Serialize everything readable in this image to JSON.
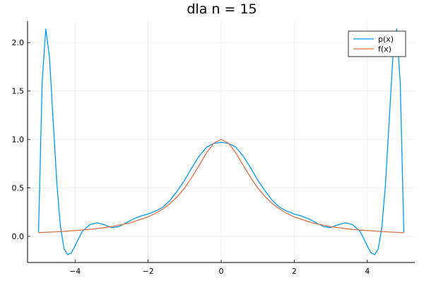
{
  "chart_data": {
    "type": "line",
    "title": "dla n = 15",
    "xlabel": "",
    "ylabel": "",
    "xlim": [
      -5.3,
      5.3
    ],
    "ylim": [
      -0.27,
      2.22
    ],
    "grid": true,
    "legend_position": "top-right",
    "x_ticks": [
      -4,
      -2,
      0,
      2,
      4
    ],
    "x_tick_labels": [
      "−4",
      "−2",
      "0",
      "2",
      "4"
    ],
    "y_ticks": [
      0.0,
      0.5,
      1.0,
      1.5,
      2.0
    ],
    "y_tick_labels": [
      "0.0",
      "0.5",
      "1.0",
      "1.5",
      "2.0"
    ],
    "series": [
      {
        "name": "p(x)",
        "color": "#009af9",
        "x": [
          -5.0,
          -4.9,
          -4.8,
          -4.7,
          -4.6,
          -4.5,
          -4.4,
          -4.3,
          -4.2,
          -4.1,
          -4.0,
          -3.9,
          -3.8,
          -3.6,
          -3.4,
          -3.2,
          -3.0,
          -2.8,
          -2.6,
          -2.4,
          -2.2,
          -2.0,
          -1.8,
          -1.6,
          -1.4,
          -1.2,
          -1.0,
          -0.8,
          -0.6,
          -0.4,
          -0.2,
          0.0,
          0.2,
          0.4,
          0.6,
          0.8,
          1.0,
          1.2,
          1.4,
          1.6,
          1.8,
          2.0,
          2.2,
          2.4,
          2.6,
          2.8,
          3.0,
          3.2,
          3.4,
          3.6,
          3.8,
          3.9,
          4.0,
          4.1,
          4.2,
          4.3,
          4.4,
          4.5,
          4.6,
          4.7,
          4.8,
          4.9,
          5.0
        ],
        "values": [
          0.04,
          1.6,
          2.14,
          1.85,
          1.2,
          0.55,
          0.1,
          -0.13,
          -0.19,
          -0.17,
          -0.1,
          -0.02,
          0.05,
          0.12,
          0.14,
          0.12,
          0.09,
          0.1,
          0.14,
          0.18,
          0.21,
          0.23,
          0.26,
          0.3,
          0.37,
          0.47,
          0.58,
          0.71,
          0.83,
          0.92,
          0.96,
          0.97,
          0.96,
          0.92,
          0.83,
          0.71,
          0.58,
          0.47,
          0.37,
          0.3,
          0.26,
          0.23,
          0.21,
          0.18,
          0.14,
          0.1,
          0.09,
          0.12,
          0.14,
          0.12,
          0.05,
          -0.02,
          -0.1,
          -0.17,
          -0.19,
          -0.13,
          0.1,
          0.55,
          1.2,
          1.85,
          2.14,
          1.6,
          0.04
        ]
      },
      {
        "name": "f(x)",
        "color": "#e26f46",
        "x": [
          -5.0,
          -4.5,
          -4.0,
          -3.5,
          -3.0,
          -2.5,
          -2.0,
          -1.8,
          -1.6,
          -1.4,
          -1.2,
          -1.0,
          -0.8,
          -0.6,
          -0.4,
          -0.2,
          0.0,
          0.2,
          0.4,
          0.6,
          0.8,
          1.0,
          1.2,
          1.4,
          1.6,
          1.8,
          2.0,
          2.5,
          3.0,
          3.5,
          4.0,
          4.5,
          5.0
        ],
        "values": [
          0.038,
          0.047,
          0.059,
          0.075,
          0.1,
          0.138,
          0.2,
          0.236,
          0.281,
          0.338,
          0.41,
          0.5,
          0.61,
          0.735,
          0.862,
          0.962,
          1.0,
          0.962,
          0.862,
          0.735,
          0.61,
          0.5,
          0.41,
          0.338,
          0.281,
          0.236,
          0.2,
          0.138,
          0.1,
          0.075,
          0.059,
          0.047,
          0.038
        ]
      }
    ]
  }
}
